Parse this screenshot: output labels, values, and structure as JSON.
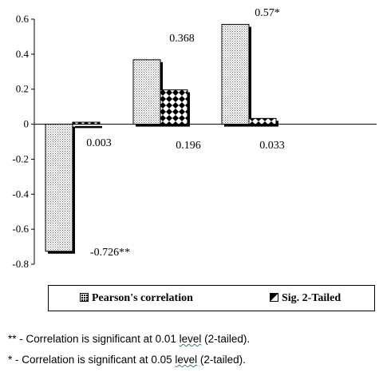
{
  "chart_data": {
    "type": "bar",
    "categories": [
      "",
      "",
      ""
    ],
    "series": [
      {
        "name": "Pearson's correlation",
        "values": [
          -0.726,
          0.368,
          0.57
        ],
        "labels": [
          "-0.726**",
          "0.368",
          "0.57*"
        ]
      },
      {
        "name": "Sig. 2-Tailed",
        "values": [
          0.003,
          0.196,
          0.033
        ],
        "labels": [
          "0.003",
          "0.196",
          "0.033"
        ]
      }
    ],
    "ylim": [
      -0.8,
      0.6
    ],
    "yticks": [
      "0.6",
      "0.4",
      "0.2",
      "0",
      "-0.2",
      "-0.4",
      "-0.6",
      "-0.8"
    ],
    "grid": false,
    "legend_position": "bottom"
  },
  "legend": {
    "item1": "Pearson's correlation",
    "item2": "Sig. 2-Tailed"
  },
  "notes": {
    "note1_prefix": "** - Correlation is significant at 0.01 ",
    "note1_word": "level",
    "note1_suffix": " (2-tailed).",
    "note2_prefix": "*   - Correlation is significant at 0.05 ",
    "note2_word": "level",
    "note2_suffix": " (2-tailed)."
  }
}
